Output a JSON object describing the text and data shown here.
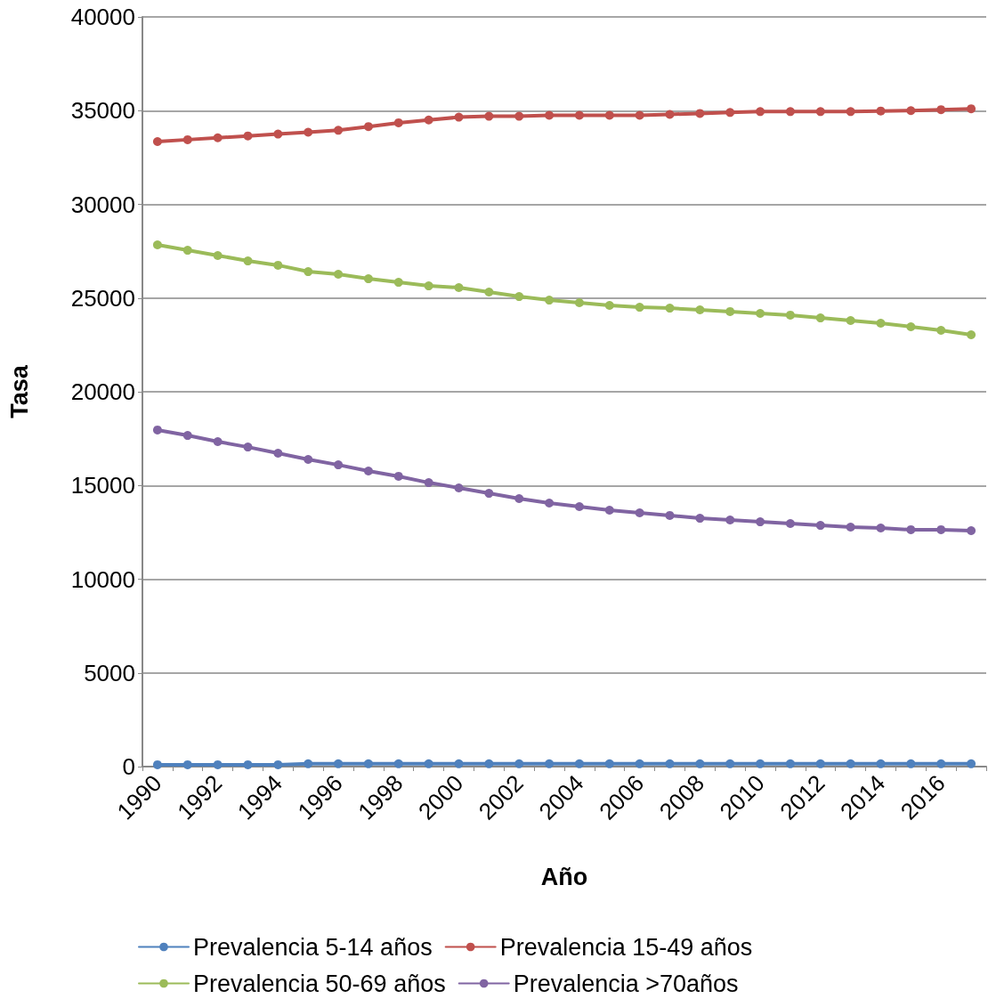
{
  "chart_data": {
    "type": "line",
    "xlabel": "Año",
    "ylabel": "Tasa",
    "categories": [
      "1990",
      null,
      "1992",
      null,
      "1994",
      null,
      "1996",
      null,
      "1998",
      null,
      "2000",
      null,
      "2002",
      null,
      "2004",
      null,
      "2006",
      null,
      "2008",
      null,
      "2010",
      null,
      "2012",
      null,
      "2014",
      null,
      "2016",
      null
    ],
    "series": [
      {
        "name": "Prevalencia 5-14 años",
        "color": "#4f81bd",
        "values": [
          100,
          100,
          100,
          100,
          100,
          150,
          150,
          150,
          150,
          150,
          150,
          150,
          150,
          150,
          150,
          150,
          150,
          150,
          150,
          150,
          150,
          150,
          150,
          150,
          150,
          150,
          150,
          150
        ]
      },
      {
        "name": "Prevalencia 15-49 años",
        "color": "#c0504d",
        "values": [
          33350,
          33450,
          33550,
          33650,
          33750,
          33850,
          33950,
          34150,
          34350,
          34500,
          34650,
          34700,
          34700,
          34750,
          34750,
          34750,
          34750,
          34800,
          34850,
          34900,
          34950,
          34950,
          34950,
          34950,
          34980,
          35000,
          35050,
          35100
        ]
      },
      {
        "name": "Prevalencia 50-69 años",
        "color": "#9bbb59",
        "values": [
          27840,
          27550,
          27270,
          26980,
          26750,
          26410,
          26270,
          26030,
          25840,
          25650,
          25560,
          25320,
          25080,
          24890,
          24750,
          24610,
          24510,
          24460,
          24370,
          24280,
          24180,
          24090,
          23940,
          23800,
          23660,
          23470,
          23280,
          23040
        ]
      },
      {
        "name": "Prevalencia >70años",
        "color": "#8064a2",
        "values": [
          17960,
          17670,
          17340,
          17050,
          16720,
          16390,
          16100,
          15770,
          15490,
          15150,
          14870,
          14580,
          14300,
          14060,
          13870,
          13680,
          13540,
          13400,
          13250,
          13160,
          13060,
          12970,
          12870,
          12780,
          12730,
          12640,
          12640,
          12590
        ]
      }
    ],
    "ylim": [
      0,
      40000
    ],
    "yticks": [
      0,
      5000,
      10000,
      15000,
      20000,
      25000,
      30000,
      35000,
      40000
    ],
    "grid": "y",
    "legend": "bottom",
    "marker": "circle",
    "line_style": "solid"
  }
}
